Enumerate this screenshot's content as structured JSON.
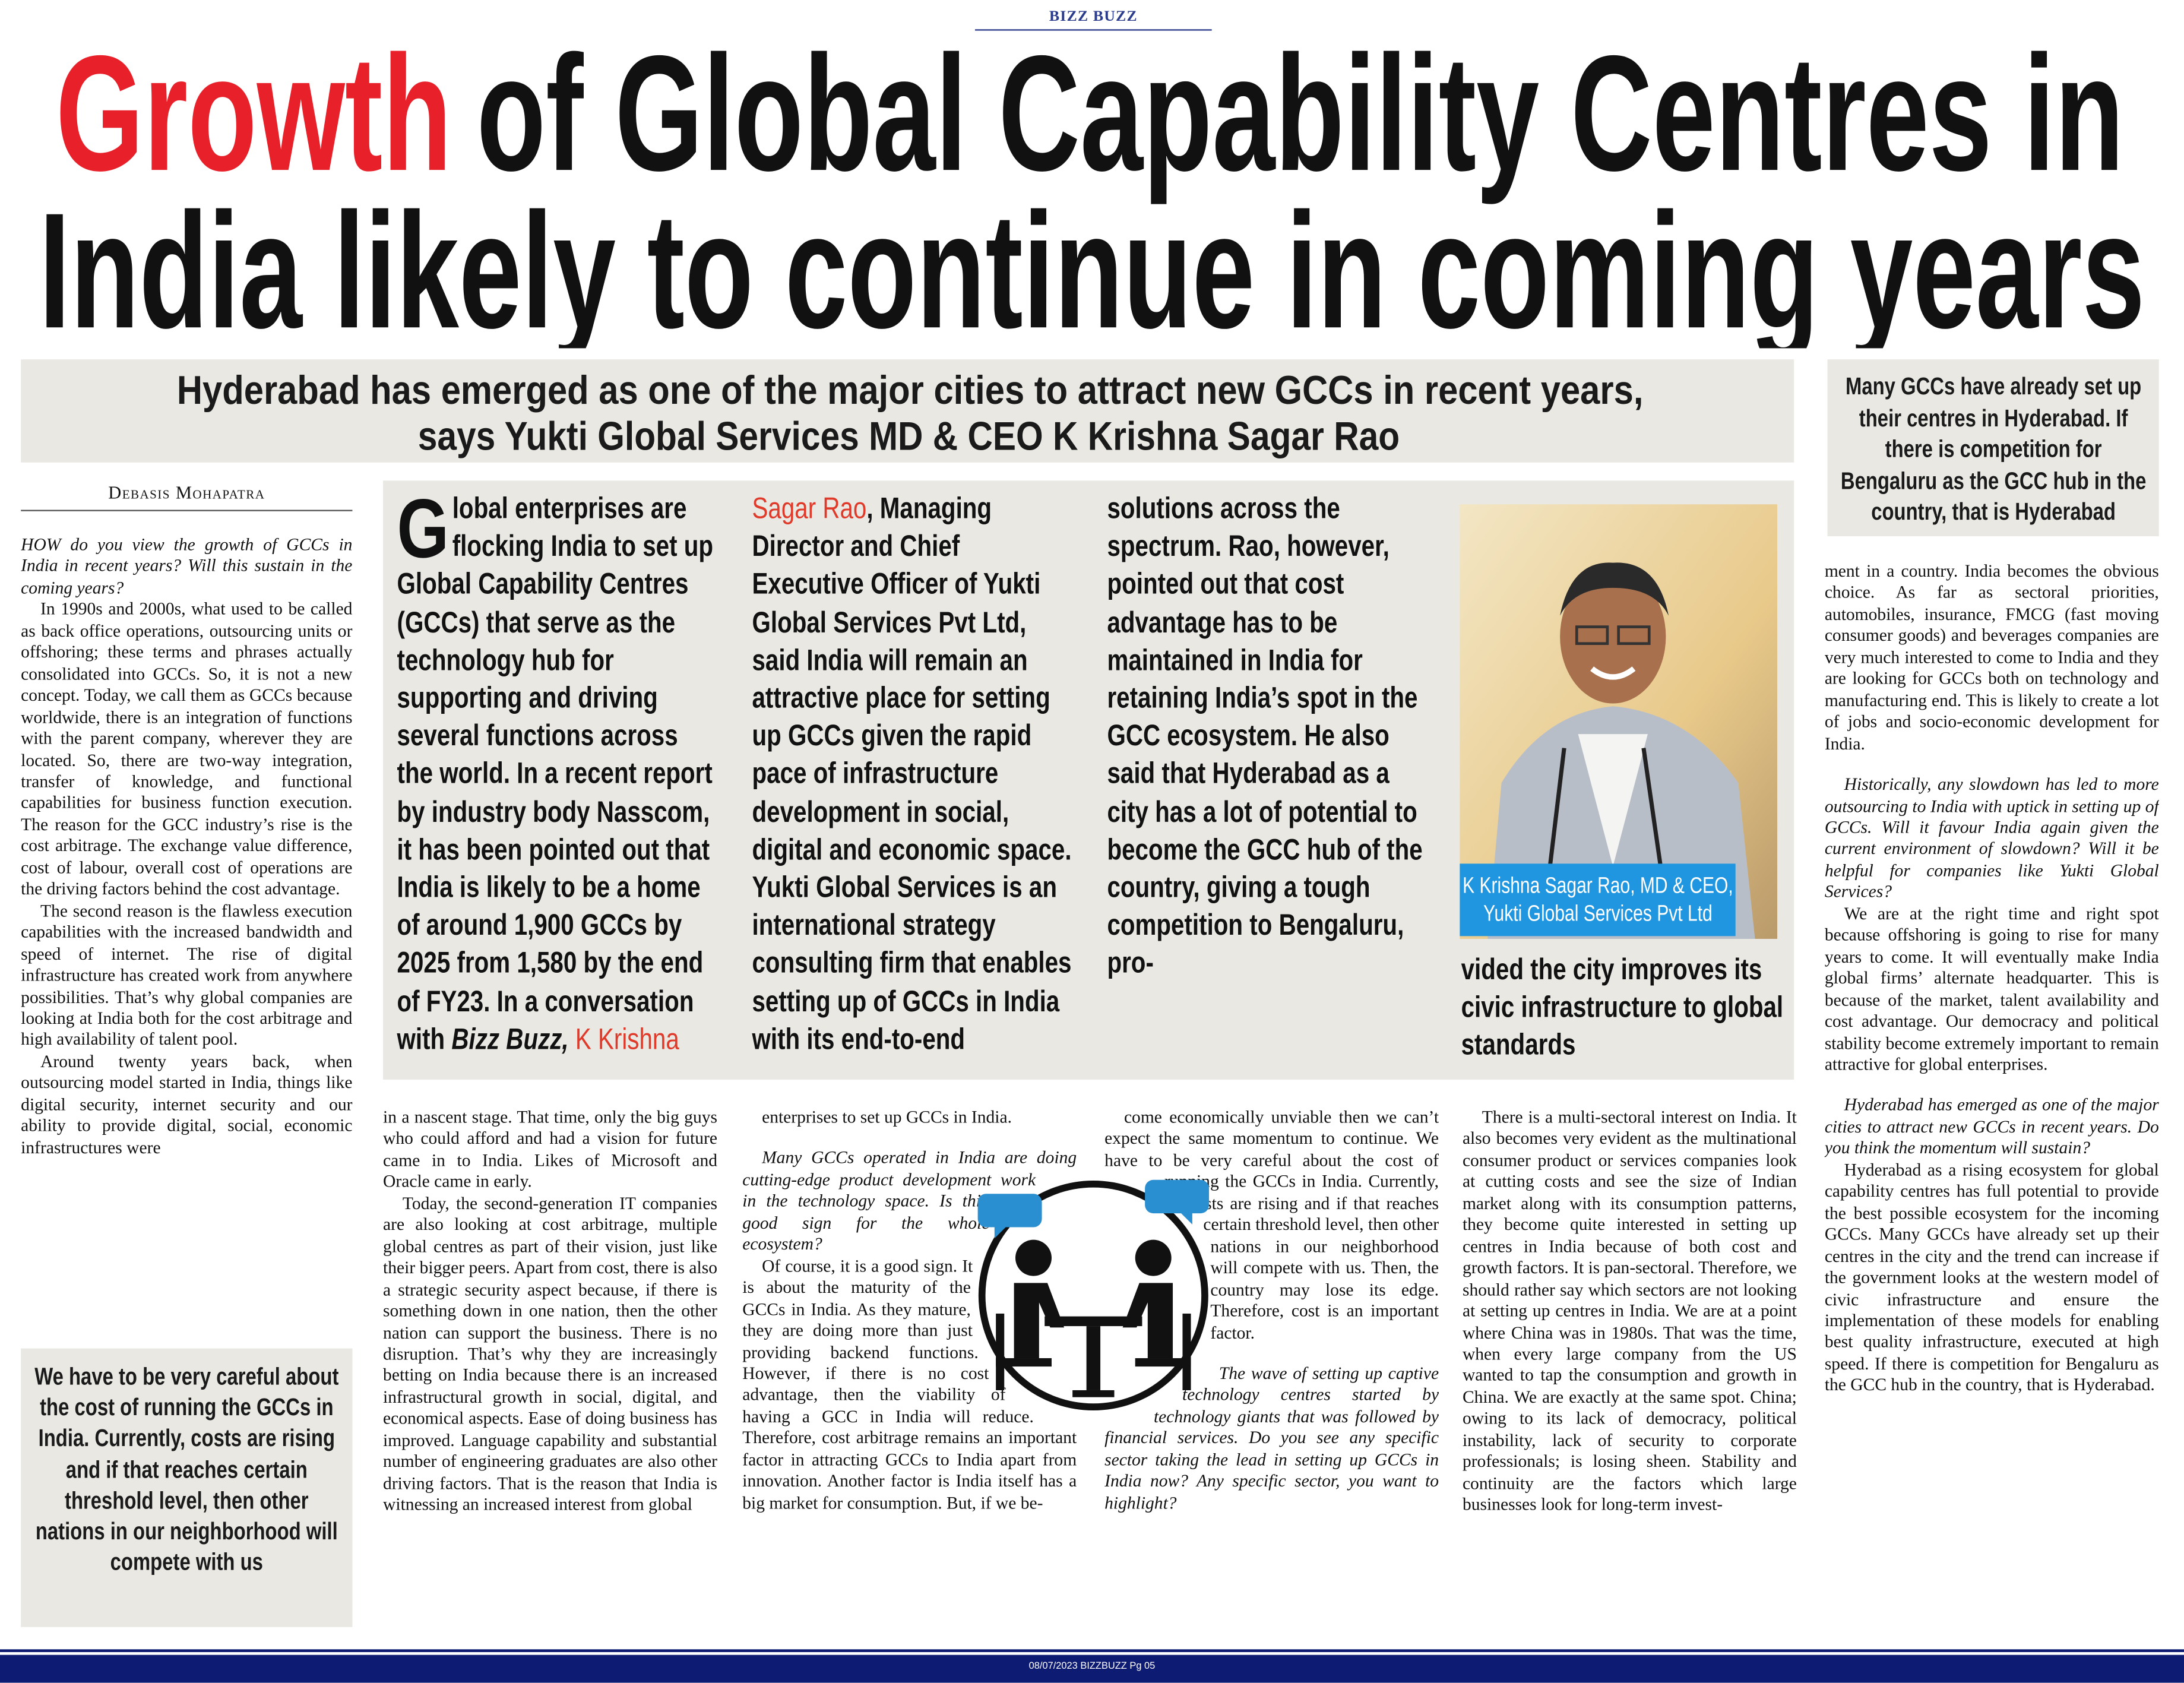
{
  "masthead": "BIZZ BUZZ",
  "headline": {
    "highlight": "Growth",
    "line1": "of Global Capability Centres in",
    "line2": "India likely to continue in coming years"
  },
  "deck": [
    "Hyderabad has emerged as one of the major cities to attract new GCCs in recent years,",
    "says Yukti Global Services MD & CEO K Krishna Sagar Rao"
  ],
  "byline": "Debasis Mohapatra",
  "pull_quotes": {
    "top_right": "Many GCCs have already set up their centres in Hyderabad. If there is competition for Bengaluru as the GCC hub in the country, that is Hyderabad",
    "left": "We have to be very careful about the cost of running the GCCs in India. Currently, costs are rising and if that reaches certain threshold level, then other nations in our neighborhood will compete with us"
  },
  "intro": {
    "runs": [
      "Global enterprises are flocking India to set up Global Capability Centres (GCCs) that serve as the technology hub for supporting and driving several functions across the world. In a recent report by industry body Nasscom, it has been pointed out that India is likely to be a home of around 1,900 GCCs by 2025 from 1,580 by the end of FY23. In a conversation with ",
      "Bizz Buzz, ",
      "K Krishna Sagar Rao",
      ", Managing Director and Chief Executive Officer of Yukti Global Services Pvt Ltd, said India will remain an attractive place for setting up GCCs given the rapid pace of infrastructure development in social, digital and economic space. Yukti Global Services is an international strategy consulting firm that enables setting up of GCCs in India with its end-to-end solutions across the spectrum. Rao, however, pointed out that cost advantage has to be maintained in India for retaining India’s spot in the GCC ecosystem. He also said that Hyderabad as a city has a lot of potential to become the GCC hub of the country, giving a tough competition to Bengaluru, pro-"
    ],
    "continuation": "vided the city improves its civic infrastructure to global standards"
  },
  "photo_caption": [
    "K Krishna Sagar Rao, MD & CEO,",
    "Yukti Global Services Pvt Ltd"
  ],
  "columns": [
    {
      "paragraphs": [
        {
          "question": "HOW do you view the growth of GCCs in India in recent years? Will this sustain in the coming years?"
        },
        {
          "text": "In 1990s and 2000s, what used to be called as back office operations, outsourcing units or offshoring; these terms and phrases actually consolidated into GCCs. So, it is not a new concept. Today, we call them as GCCs because worldwide, there is an integration of functions with the parent company, wherever they are located. So, there are two-way integration, transfer of knowledge, and functional capabilities for business function execution. The reason for the GCC industry’s rise is the cost arbitrage. The exchange value difference, cost of labour, overall cost of operations are the driving factors behind the cost advantage."
        },
        {
          "text": "The second reason is the flawless execution capabilities with the increased bandwidth and speed of internet. The rise of digital infrastructure has created work from anywhere possibilities. That’s why global companies are looking at India both for the cost arbitrage and high availability of talent pool."
        },
        {
          "text": "Around twenty years back, when outsourcing model started in India, things like digital security, internet security and our ability to provide digital, social, economic infrastructures were"
        }
      ]
    },
    {
      "paragraphs": [
        {
          "text": "in a nascent stage. That time, only the big guys who could afford and had a vision for future came in to India. Likes of Microsoft and Oracle came in early."
        },
        {
          "text": "Today, the second-generation IT companies are also looking at cost arbitrage, multiple global centres as part of their vision, just like their bigger peers. Apart from cost, there is also a strategic security aspect because, if there is something down in one nation, then the other nation can support the business. There is no disruption. That’s why they are increasingly betting on India because there is an increased infrastructural growth in social, digital, and economical aspects. Ease of doing business has improved. Language capability and substantial number of engineering graduates are also other driving factors. That is the reason that India is witnessing an increased interest from global"
        }
      ]
    },
    {
      "paragraphs": [
        {
          "text": "enterprises to set up GCCs in India."
        },
        {
          "question": "Many GCCs operated in India are doing cutting-edge product development work in the technology space. Is this a good sign for the whole ecosystem?"
        },
        {
          "text": "Of course, it is a good sign. It is about the maturity of the GCCs in India. As they mature, they are doing more than just providing backend functions. However, if there is no cost advantage, then the viability of having a GCC in India will reduce. Therefore, cost arbitrage remains an important factor in attracting GCCs to India apart from innovation. Another factor is India itself has a big market for consumption. But, if we be-"
        }
      ]
    },
    {
      "paragraphs": [
        {
          "text": "come economically unviable then we can’t expect the same momentum to continue. We have to be very careful about the cost of running the GCCs in India. Currently, costs are rising and if that reaches certain threshold level, then other nations in our neighborhood will compete with us. Then, the country may lose its edge. Therefore, cost is an important factor."
        },
        {
          "question": "The wave of setting up captive technology centres started by technology giants that was followed by financial services. Do you see any specific sector taking the lead in setting up GCCs in India now? Any specific sector, you want to highlight?"
        }
      ]
    },
    {
      "paragraphs": [
        {
          "text": "There is a multi-sectoral interest on India. It also becomes very evident as the multinational consumer product or services companies look at cutting costs and see the size of Indian market along with its consumption patterns, they become quite interested in setting up centres in India because of both cost and growth factors. It is pan-sectoral. Therefore, we should rather say which sectors are not looking at setting up centres in India. We are at a point where China was in 1980s. That was the time, when every large company from the US wanted to tap the consumption and growth in China. We are exactly at the same spot. China; owing to its lack of democracy, political instability, lack of security to corporate professionals; is losing sheen. Stability and continuity are the factors which large businesses look for long-term invest-"
        }
      ]
    },
    {
      "paragraphs": [
        {
          "text": "ment in a country. India becomes the obvious choice. As far as sectoral priorities, automobiles, insurance, FMCG (fast moving consumer goods) and beverages companies are very much interested to come to India and they are looking for GCCs both on technology and manufacturing end. This is likely to create a lot of jobs and socio-economic development for India."
        },
        {
          "question": "Historically, any slowdown has led to more outsourcing to India with uptick in setting up of GCCs. Will it favour India again given the current environment of slowdown? Will it be helpful for companies like Yukti Global Services?"
        },
        {
          "text": "We are at the right time and right spot because offshoring is going to rise for many years to come. It will eventually make India global firms’ alternate headquarter. This is because of the market, talent availability and cost advantage. Our democracy and political stability become extremely important to remain attractive for global enterprises."
        },
        {
          "question": "Hyderabad has emerged as one of the major cities to attract new GCCs in recent years. Do you think the momentum will sustain?"
        },
        {
          "text": "Hyderabad as a rising ecosystem for global capability centres has full potential to provide the best possible ecosystem for the incoming GCCs. Many GCCs have already set up their centres in the city and the trend can increase if the government looks at the western model of civic infrastructure and ensure the implementation of these models for enabling best quality infrastructure, executed at high speed. If there is competition for Bengaluru as the GCC hub in the country, that is Hyderabad."
        }
      ]
    }
  ],
  "footer": "08/07/2023 BIZZBUZZ Pg 05"
}
